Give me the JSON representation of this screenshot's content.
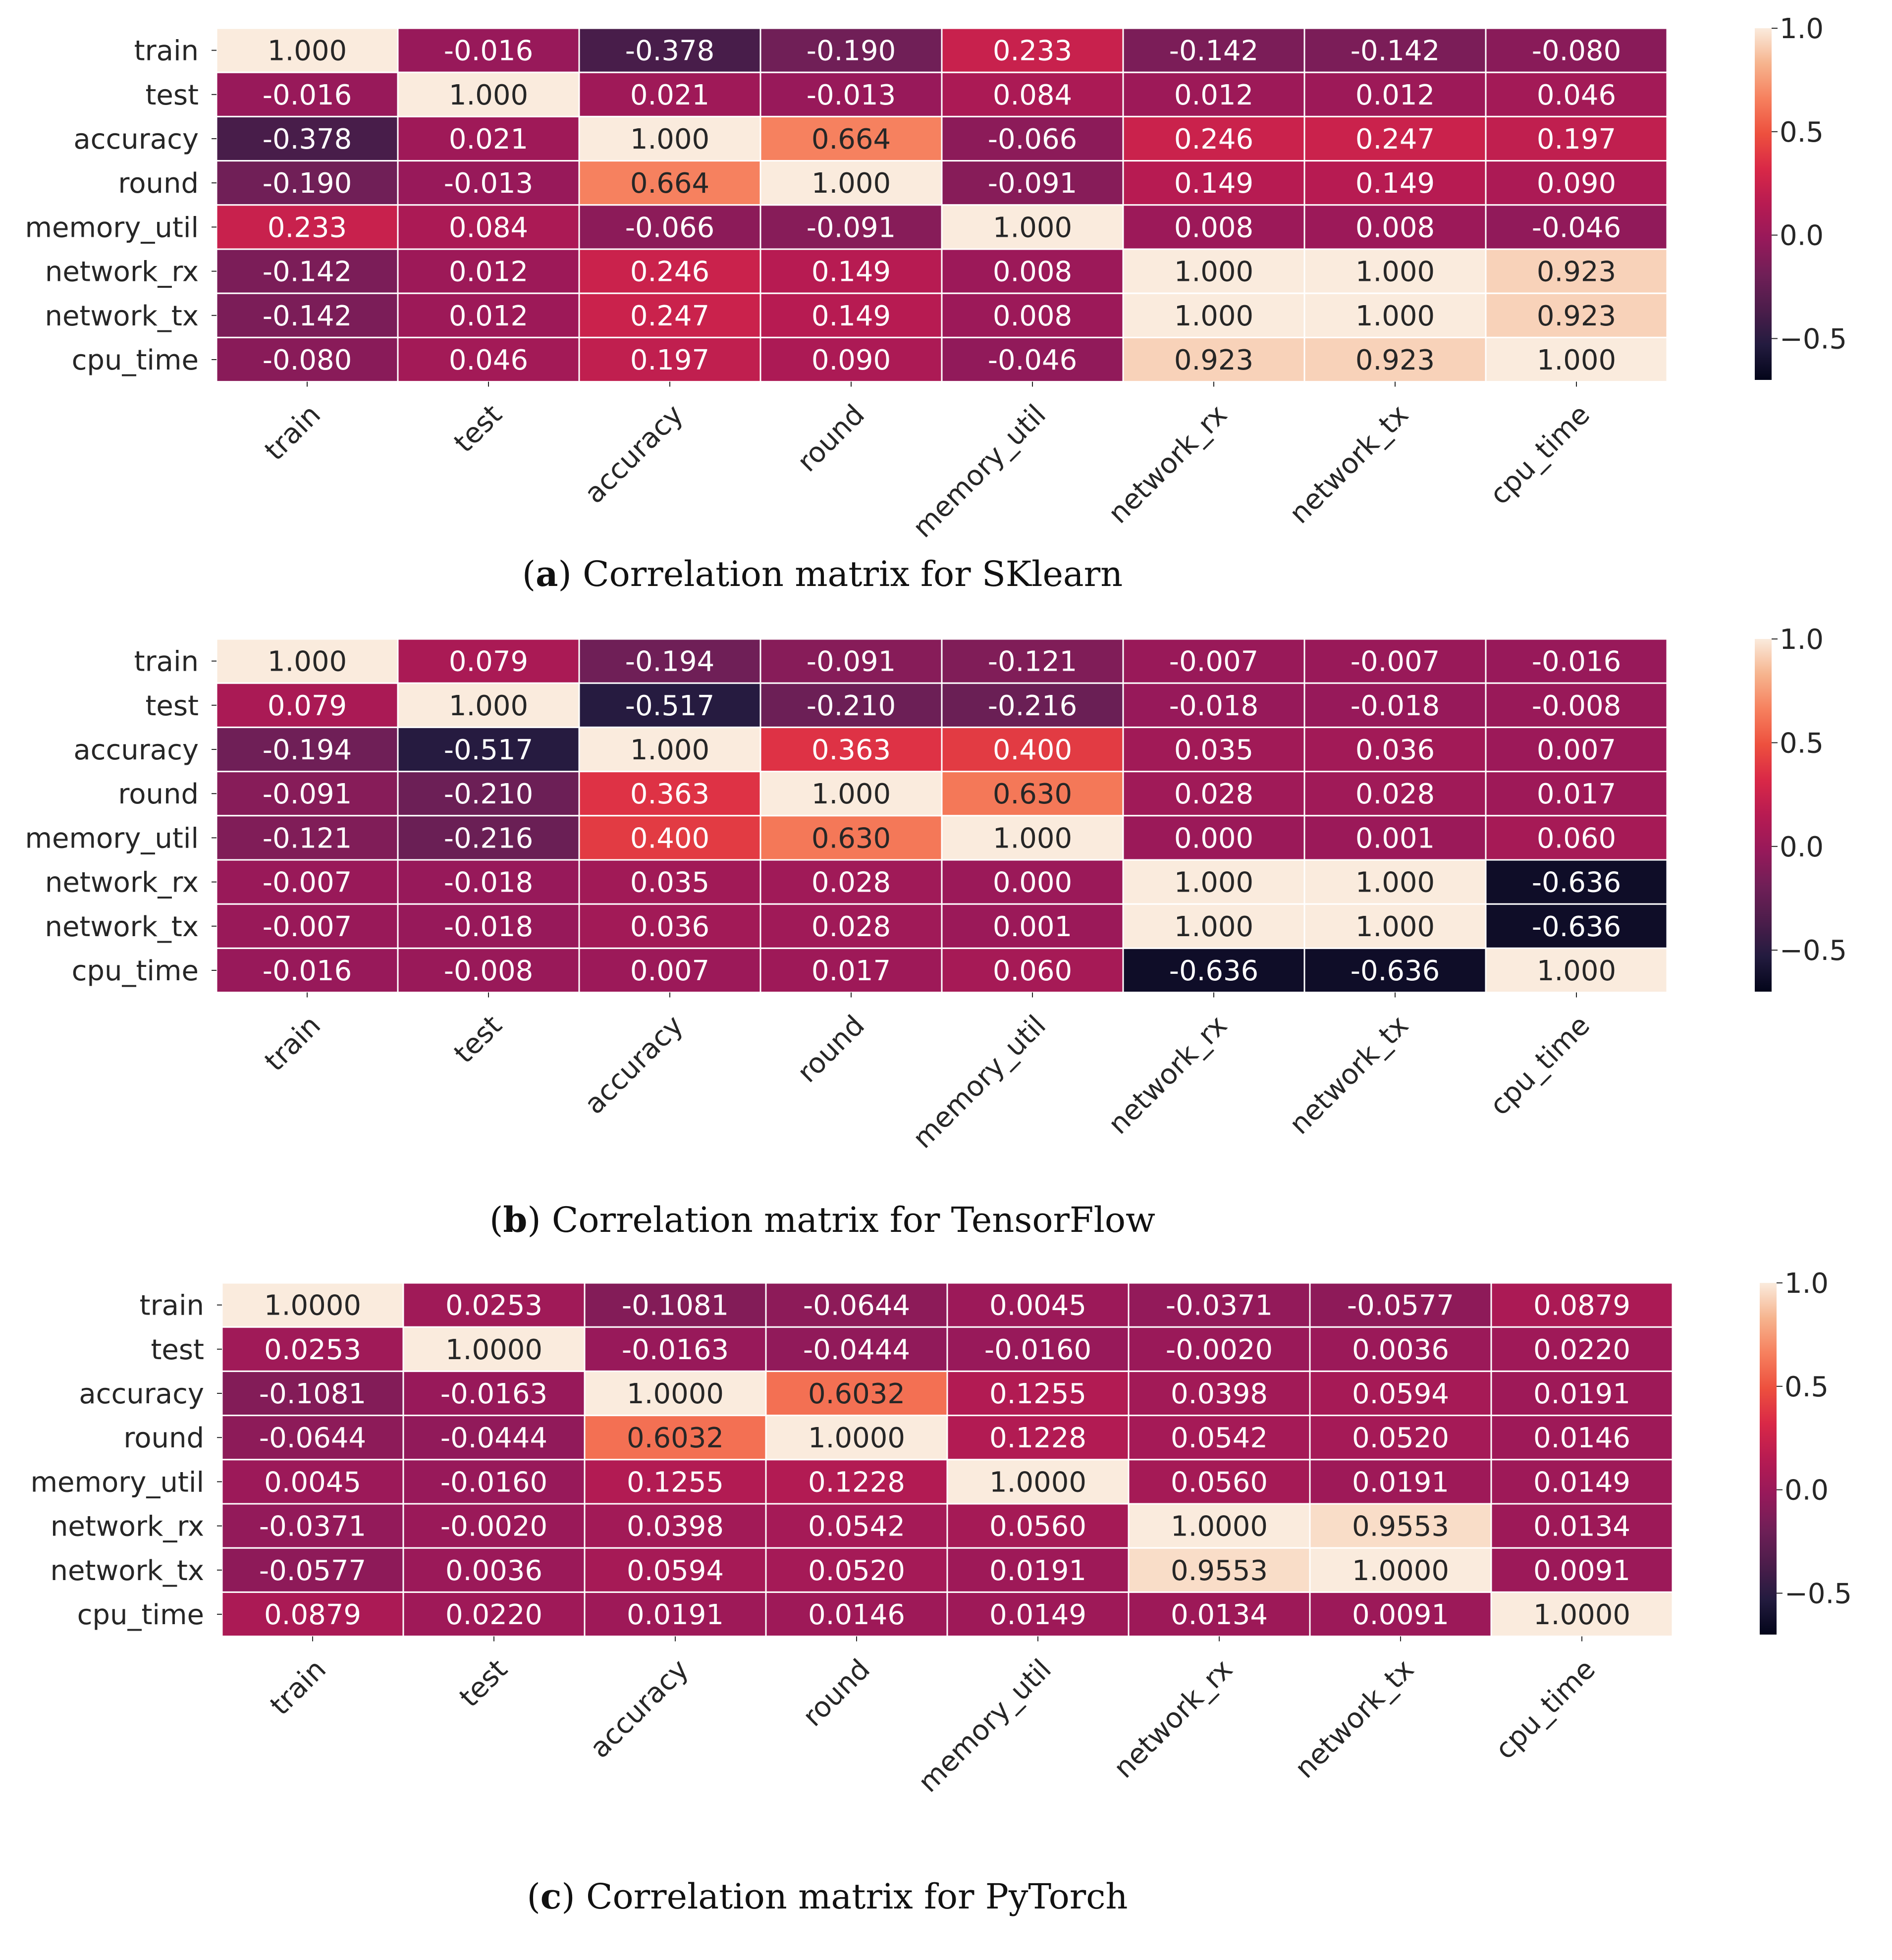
{
  "chart_data": [
    {
      "type": "heatmap",
      "panel": "a",
      "caption_letter": "a",
      "caption_text": "Correlation matrix for SKlearn",
      "caption_open": "(",
      "caption_close": ")",
      "x_labels": [
        "train",
        "test",
        "accuracy",
        "round",
        "memory_util",
        "network_rx",
        "network_tx",
        "cpu_time"
      ],
      "y_labels": [
        "train",
        "test",
        "accuracy",
        "round",
        "memory_util",
        "network_rx",
        "network_tx",
        "cpu_time"
      ],
      "display_values": [
        [
          "1.000",
          "-0.016",
          "-0.378",
          "-0.190",
          "0.233",
          "-0.142",
          "-0.142",
          "-0.080"
        ],
        [
          "-0.016",
          "1.000",
          "0.021",
          "-0.013",
          "0.084",
          "0.012",
          "0.012",
          "0.046"
        ],
        [
          "-0.378",
          "0.021",
          "1.000",
          "0.664",
          "-0.066",
          "0.246",
          "0.247",
          "0.197"
        ],
        [
          "-0.190",
          "-0.013",
          "0.664",
          "1.000",
          "-0.091",
          "0.149",
          "0.149",
          "0.090"
        ],
        [
          "0.233",
          "0.084",
          "-0.066",
          "-0.091",
          "1.000",
          "0.008",
          "0.008",
          "-0.046"
        ],
        [
          "-0.142",
          "0.012",
          "0.246",
          "0.149",
          "0.008",
          "1.000",
          "1.000",
          "0.923"
        ],
        [
          "-0.142",
          "0.012",
          "0.247",
          "0.149",
          "0.008",
          "1.000",
          "1.000",
          "0.923"
        ],
        [
          "-0.080",
          "0.046",
          "0.197",
          "0.090",
          "-0.046",
          "0.923",
          "0.923",
          "1.000"
        ]
      ],
      "colorbar": {
        "vmin": -0.7,
        "vmax": 1.0,
        "ticks": [
          -0.5,
          0.0,
          0.5,
          1.0
        ],
        "tick_labels": [
          "−0.5",
          "0.0",
          "0.5",
          "1.0"
        ]
      }
    },
    {
      "type": "heatmap",
      "panel": "b",
      "caption_letter": "b",
      "caption_text": "Correlation matrix for TensorFlow",
      "caption_open": "(",
      "caption_close": ")",
      "x_labels": [
        "train",
        "test",
        "accuracy",
        "round",
        "memory_util",
        "network_rx",
        "network_tx",
        "cpu_time"
      ],
      "y_labels": [
        "train",
        "test",
        "accuracy",
        "round",
        "memory_util",
        "network_rx",
        "network_tx",
        "cpu_time"
      ],
      "display_values": [
        [
          "1.000",
          "0.079",
          "-0.194",
          "-0.091",
          "-0.121",
          "-0.007",
          "-0.007",
          "-0.016"
        ],
        [
          "0.079",
          "1.000",
          "-0.517",
          "-0.210",
          "-0.216",
          "-0.018",
          "-0.018",
          "-0.008"
        ],
        [
          "-0.194",
          "-0.517",
          "1.000",
          "0.363",
          "0.400",
          "0.035",
          "0.036",
          "0.007"
        ],
        [
          "-0.091",
          "-0.210",
          "0.363",
          "1.000",
          "0.630",
          "0.028",
          "0.028",
          "0.017"
        ],
        [
          "-0.121",
          "-0.216",
          "0.400",
          "0.630",
          "1.000",
          "0.000",
          "0.001",
          "0.060"
        ],
        [
          "-0.007",
          "-0.018",
          "0.035",
          "0.028",
          "0.000",
          "1.000",
          "1.000",
          "-0.636"
        ],
        [
          "-0.007",
          "-0.018",
          "0.036",
          "0.028",
          "0.001",
          "1.000",
          "1.000",
          "-0.636"
        ],
        [
          "-0.016",
          "-0.008",
          "0.007",
          "0.017",
          "0.060",
          "-0.636",
          "-0.636",
          "1.000"
        ]
      ],
      "colorbar": {
        "vmin": -0.7,
        "vmax": 1.0,
        "ticks": [
          -0.5,
          0.0,
          0.5,
          1.0
        ],
        "tick_labels": [
          "−0.5",
          "0.0",
          "0.5",
          "1.0"
        ]
      }
    },
    {
      "type": "heatmap",
      "panel": "c",
      "caption_letter": "c",
      "caption_text": "Correlation matrix for PyTorch",
      "caption_open": "(",
      "caption_close": ")",
      "x_labels": [
        "train",
        "test",
        "accuracy",
        "round",
        "memory_util",
        "network_rx",
        "network_tx",
        "cpu_time"
      ],
      "y_labels": [
        "train",
        "test",
        "accuracy",
        "round",
        "memory_util",
        "network_rx",
        "network_tx",
        "cpu_time"
      ],
      "display_values": [
        [
          "1.0000",
          "0.0253",
          "-0.1081",
          "-0.0644",
          "0.0045",
          "-0.0371",
          "-0.0577",
          "0.0879"
        ],
        [
          "0.0253",
          "1.0000",
          "-0.0163",
          "-0.0444",
          "-0.0160",
          "-0.0020",
          "0.0036",
          "0.0220"
        ],
        [
          "-0.1081",
          "-0.0163",
          "1.0000",
          "0.6032",
          "0.1255",
          "0.0398",
          "0.0594",
          "0.0191"
        ],
        [
          "-0.0644",
          "-0.0444",
          "0.6032",
          "1.0000",
          "0.1228",
          "0.0542",
          "0.0520",
          "0.0146"
        ],
        [
          "0.0045",
          "-0.0160",
          "0.1255",
          "0.1228",
          "1.0000",
          "0.0560",
          "0.0191",
          "0.0149"
        ],
        [
          "-0.0371",
          "-0.0020",
          "0.0398",
          "0.0542",
          "0.0560",
          "1.0000",
          "0.9553",
          "0.0134"
        ],
        [
          "-0.0577",
          "0.0036",
          "0.0594",
          "0.0520",
          "0.0191",
          "0.9553",
          "1.0000",
          "0.0091"
        ],
        [
          "0.0879",
          "0.0220",
          "0.0191",
          "0.0146",
          "0.0149",
          "0.0134",
          "0.0091",
          "1.0000"
        ]
      ],
      "colorbar": {
        "vmin": -0.7,
        "vmax": 1.0,
        "ticks": [
          -0.5,
          0.0,
          0.5,
          1.0
        ],
        "tick_labels": [
          "−0.5",
          "0.0",
          "0.5",
          "1.0"
        ]
      }
    }
  ]
}
